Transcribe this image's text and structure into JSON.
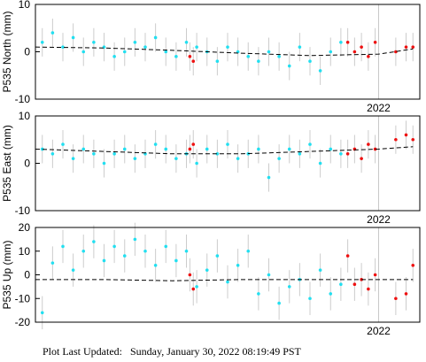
{
  "chart_data": [
    {
      "type": "scatter",
      "ylabel": "P535 North (mm)",
      "xlim": [
        2021.0,
        2022.12
      ],
      "xticks": [
        2022
      ],
      "ylim": [
        -10,
        10
      ],
      "yticks": [
        -10,
        0,
        10
      ],
      "series": [
        {
          "color": "#22dff0",
          "error": 3,
          "x": [
            2021.02,
            2021.05,
            2021.08,
            2021.11,
            2021.14,
            2021.17,
            2021.2,
            2021.23,
            2021.26,
            2021.29,
            2021.32,
            2021.35,
            2021.38,
            2021.41,
            2021.44,
            2021.47,
            2021.5,
            2021.53,
            2021.56,
            2021.59,
            2021.62,
            2021.65,
            2021.68,
            2021.71,
            2021.74,
            2021.77,
            2021.8,
            2021.83,
            2021.86,
            2021.89
          ],
          "values": [
            2,
            4,
            1,
            3,
            0,
            2,
            1,
            -1,
            0,
            2,
            1,
            3,
            0,
            -1,
            2,
            1,
            0,
            -2,
            1,
            0,
            -1,
            -2,
            0,
            -1,
            -3,
            1,
            -2,
            -4,
            0,
            2
          ]
        },
        {
          "color": "#ee1111",
          "error": 3,
          "x": [
            2021.45,
            2021.46,
            2021.91,
            2021.93,
            2021.95,
            2021.97,
            2021.99,
            2022.05,
            2022.08,
            2022.1
          ],
          "values": [
            -1,
            -2,
            2,
            0,
            1,
            -1,
            2,
            0,
            1,
            1
          ]
        },
        {
          "color": "#000000",
          "line_style": "dashed",
          "x": [
            2021.0,
            2021.2,
            2021.4,
            2021.6,
            2021.8,
            2022.0,
            2022.1
          ],
          "values": [
            1,
            0.8,
            0.3,
            -0.3,
            -0.8,
            -0.5,
            0.6
          ]
        }
      ]
    },
    {
      "type": "scatter",
      "ylabel": "P535 East (mm)",
      "xlim": [
        2021.0,
        2022.12
      ],
      "xticks": [
        2022
      ],
      "ylim": [
        -10,
        10
      ],
      "yticks": [
        -10,
        0,
        10
      ],
      "series": [
        {
          "color": "#22dff0",
          "error": 3,
          "x": [
            2021.02,
            2021.05,
            2021.08,
            2021.11,
            2021.14,
            2021.17,
            2021.2,
            2021.23,
            2021.26,
            2021.29,
            2021.32,
            2021.35,
            2021.38,
            2021.41,
            2021.44,
            2021.47,
            2021.5,
            2021.53,
            2021.56,
            2021.59,
            2021.62,
            2021.65,
            2021.68,
            2021.71,
            2021.74,
            2021.77,
            2021.8,
            2021.83,
            2021.86,
            2021.89
          ],
          "values": [
            3,
            2,
            4,
            1,
            3,
            2,
            0,
            2,
            3,
            1,
            2,
            4,
            3,
            1,
            2,
            0,
            3,
            2,
            4,
            1,
            2,
            3,
            -3,
            1,
            3,
            2,
            4,
            0,
            3,
            2
          ]
        },
        {
          "color": "#ee1111",
          "error": 3,
          "x": [
            2021.45,
            2021.46,
            2021.91,
            2021.93,
            2021.95,
            2021.97,
            2021.99,
            2022.05,
            2022.08,
            2022.1
          ],
          "values": [
            3,
            4,
            2,
            3,
            1,
            4,
            3,
            5,
            6,
            5
          ]
        },
        {
          "color": "#000000",
          "line_style": "dashed",
          "x": [
            2021.0,
            2021.2,
            2021.4,
            2021.6,
            2021.8,
            2022.0,
            2022.1
          ],
          "values": [
            3,
            2.5,
            2,
            2,
            2.5,
            3,
            3.5
          ]
        }
      ]
    },
    {
      "type": "scatter",
      "ylabel": "P535 Up (mm)",
      "xlim": [
        2021.0,
        2022.12
      ],
      "xticks": [
        2022
      ],
      "ylim": [
        -20,
        20
      ],
      "yticks": [
        -20,
        -10,
        0,
        10,
        20
      ],
      "series": [
        {
          "color": "#22dff0",
          "error": 7,
          "x": [
            2021.02,
            2021.05,
            2021.08,
            2021.11,
            2021.14,
            2021.17,
            2021.2,
            2021.23,
            2021.26,
            2021.29,
            2021.32,
            2021.35,
            2021.38,
            2021.41,
            2021.44,
            2021.47,
            2021.5,
            2021.53,
            2021.56,
            2021.59,
            2021.62,
            2021.65,
            2021.68,
            2021.71,
            2021.74,
            2021.77,
            2021.8,
            2021.83,
            2021.86,
            2021.89
          ],
          "values": [
            -16,
            5,
            12,
            2,
            10,
            14,
            6,
            12,
            8,
            15,
            10,
            4,
            12,
            6,
            10,
            -5,
            2,
            8,
            -3,
            4,
            10,
            -8,
            0,
            -12,
            -5,
            -2,
            -10,
            2,
            -8,
            -4
          ]
        },
        {
          "color": "#ee1111",
          "error": 7,
          "x": [
            2021.45,
            2021.46,
            2021.91,
            2021.93,
            2021.95,
            2021.97,
            2021.99,
            2022.05,
            2022.08,
            2022.1
          ],
          "values": [
            0,
            -6,
            8,
            -4,
            -2,
            -6,
            0,
            -10,
            -8,
            4
          ]
        },
        {
          "color": "#000000",
          "line_style": "dashed",
          "x": [
            2021.0,
            2021.2,
            2021.4,
            2021.6,
            2021.8,
            2022.0,
            2022.1
          ],
          "values": [
            -2,
            -2,
            -2.5,
            -2,
            -2,
            -2,
            -2
          ]
        }
      ]
    }
  ],
  "footer": "Plot Last Updated:   Sunday, January 30, 2022 08:19:49 PST"
}
